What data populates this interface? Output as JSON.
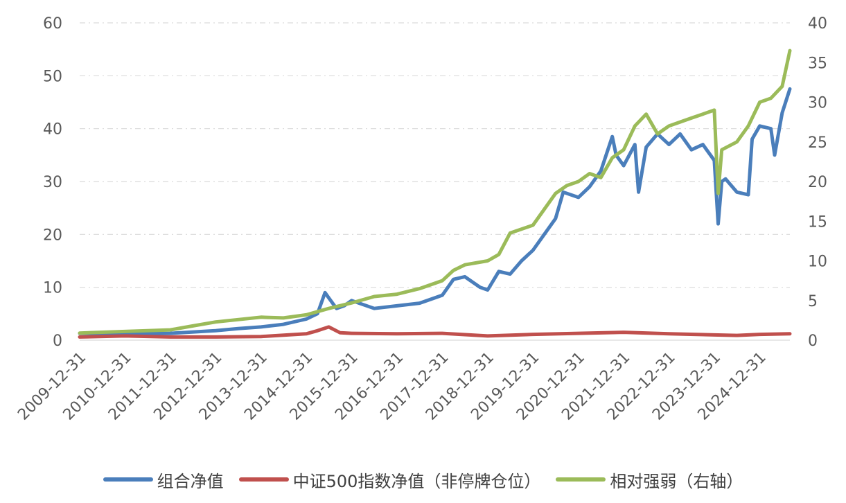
{
  "chart_data": {
    "type": "line",
    "title": "",
    "xlabel": "",
    "ylabel": "",
    "y2label": "",
    "xlim": [
      "2009-12-31",
      "2025-08-31"
    ],
    "ylim": [
      0,
      60
    ],
    "y2lim": [
      0,
      40
    ],
    "y_ticks": [
      "0",
      "10",
      "20",
      "30",
      "40",
      "50",
      "60"
    ],
    "y2_ticks": [
      "0",
      "5",
      "10",
      "15",
      "20",
      "25",
      "30",
      "35",
      "40"
    ],
    "x_ticks": [
      "2009-12-31",
      "2010-12-31",
      "2011-12-31",
      "2012-12-31",
      "2013-12-31",
      "2014-12-31",
      "2015-12-31",
      "2016-12-31",
      "2017-12-31",
      "2018-12-31",
      "2019-12-31",
      "2020-12-31",
      "2021-12-31",
      "2022-12-31",
      "2023-12-31",
      "2024-12-31"
    ],
    "grid": true,
    "legend_position": "bottom",
    "series": [
      {
        "name": "组合净值",
        "axis": "left",
        "color": "#4a7ebb",
        "x": [
          "2009-12-31",
          "2010-12-31",
          "2011-12-31",
          "2012-12-31",
          "2013-06-30",
          "2013-12-31",
          "2014-06-30",
          "2014-12-31",
          "2015-03-31",
          "2015-05-31",
          "2015-06-30",
          "2015-08-31",
          "2015-10-31",
          "2015-12-31",
          "2016-06-30",
          "2016-12-31",
          "2017-06-30",
          "2017-12-31",
          "2018-03-31",
          "2018-06-30",
          "2018-10-31",
          "2018-12-31",
          "2019-03-31",
          "2019-06-30",
          "2019-09-30",
          "2019-12-31",
          "2020-03-31",
          "2020-06-30",
          "2020-08-31",
          "2020-12-31",
          "2021-03-31",
          "2021-06-30",
          "2021-09-30",
          "2021-10-31",
          "2021-12-31",
          "2022-03-31",
          "2022-04-30",
          "2022-06-30",
          "2022-09-30",
          "2022-12-31",
          "2023-03-31",
          "2023-06-30",
          "2023-09-30",
          "2023-12-31",
          "2024-01-31",
          "2024-02-29",
          "2024-03-31",
          "2024-06-30",
          "2024-09-30",
          "2024-10-31",
          "2024-12-31",
          "2025-03-31",
          "2025-04-30",
          "2025-06-30",
          "2025-08-31"
        ],
        "values": [
          1.3,
          1.2,
          1.3,
          1.8,
          2.2,
          2.5,
          3.0,
          4.0,
          5.0,
          9.0,
          8.0,
          6.0,
          6.5,
          7.5,
          6.0,
          6.5,
          7.0,
          8.5,
          11.5,
          12.0,
          10.0,
          9.5,
          13.0,
          12.5,
          15.0,
          17.0,
          20.0,
          23.0,
          28.0,
          27.0,
          29.0,
          32.0,
          38.5,
          35.0,
          33.0,
          37.0,
          28.0,
          36.5,
          39.0,
          37.0,
          39.0,
          36.0,
          37.0,
          34.0,
          22.0,
          30.0,
          30.5,
          28.0,
          27.5,
          38.0,
          40.5,
          40.0,
          35.0,
          43.0,
          47.5
        ]
      },
      {
        "name": "中证500指数净值（非停牌仓位）",
        "axis": "left",
        "color": "#c0504d",
        "x": [
          "2009-12-31",
          "2010-12-31",
          "2011-12-31",
          "2012-12-31",
          "2013-12-31",
          "2014-12-31",
          "2015-03-31",
          "2015-06-30",
          "2015-09-30",
          "2015-12-31",
          "2016-12-31",
          "2017-12-31",
          "2018-12-31",
          "2019-12-31",
          "2020-12-31",
          "2021-12-31",
          "2022-12-31",
          "2023-12-31",
          "2024-06-30",
          "2024-12-31",
          "2025-08-31"
        ],
        "values": [
          0.6,
          0.8,
          0.6,
          0.6,
          0.7,
          1.2,
          1.8,
          2.5,
          1.4,
          1.3,
          1.2,
          1.3,
          0.8,
          1.1,
          1.3,
          1.5,
          1.2,
          1.0,
          0.9,
          1.1,
          1.2
        ]
      },
      {
        "name": "相对强弱（右轴）",
        "axis": "right",
        "color": "#9bbb59",
        "x": [
          "2009-12-31",
          "2010-12-31",
          "2011-12-31",
          "2012-06-30",
          "2012-12-31",
          "2013-12-31",
          "2014-06-30",
          "2014-12-31",
          "2015-06-30",
          "2015-12-31",
          "2016-06-30",
          "2016-12-31",
          "2017-06-30",
          "2017-12-31",
          "2018-03-31",
          "2018-06-30",
          "2018-12-31",
          "2019-03-31",
          "2019-06-30",
          "2019-12-31",
          "2020-06-30",
          "2020-09-30",
          "2020-12-31",
          "2021-03-31",
          "2021-06-30",
          "2021-09-30",
          "2021-12-31",
          "2022-03-31",
          "2022-06-30",
          "2022-09-30",
          "2022-12-31",
          "2023-03-31",
          "2023-06-30",
          "2023-09-30",
          "2023-12-31",
          "2024-01-31",
          "2024-02-29",
          "2024-06-30",
          "2024-09-30",
          "2024-12-31",
          "2025-03-31",
          "2025-06-30",
          "2025-08-31"
        ],
        "values": [
          0.9,
          1.1,
          1.3,
          1.8,
          2.3,
          2.9,
          2.8,
          3.2,
          4.0,
          4.7,
          5.5,
          5.8,
          6.5,
          7.5,
          8.8,
          9.5,
          10.0,
          10.8,
          13.5,
          14.5,
          18.5,
          19.5,
          20.0,
          21.0,
          20.5,
          23.0,
          24.0,
          27.0,
          28.5,
          26.0,
          27.0,
          27.5,
          28.0,
          28.5,
          29.0,
          18.5,
          24.0,
          25.0,
          27.0,
          30.0,
          30.5,
          32.0,
          36.5
        ]
      }
    ]
  }
}
